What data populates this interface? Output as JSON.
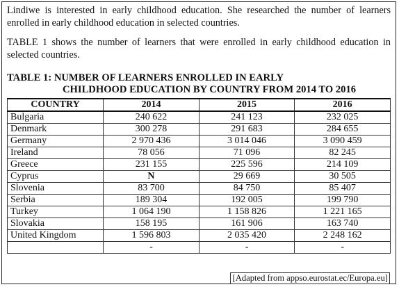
{
  "intro": {
    "paragraph1": "Lindiwe is interested in early childhood education. She researched the number of learners enrolled in early childhood education in selected countries.",
    "paragraph2": "TABLE 1 shows the number of learners that were enrolled in early childhood education in selected countries."
  },
  "table": {
    "caption_line1": "TABLE 1: NUMBER OF LEARNERS ENROLLED IN EARLY",
    "caption_line2": "CHILDHOOD EDUCATION BY COUNTRY FROM 2014 TO 2016",
    "headers": [
      "COUNTRY",
      "2014",
      "2015",
      "2016"
    ],
    "rows": [
      [
        "Bulgaria",
        "240 622",
        "241 123",
        "232 025"
      ],
      [
        "Denmark",
        "300 278",
        "291 683",
        "284 655"
      ],
      [
        "Germany",
        "2 970 436",
        "3 014 046",
        "3 090 459"
      ],
      [
        "Ireland",
        "78 056",
        "71 096",
        "82 245"
      ],
      [
        "Greece",
        "231 155",
        "225 596",
        "214 109"
      ],
      [
        "Cyprus",
        "N",
        "29 669",
        "30 505"
      ],
      [
        "Slovenia",
        "83 700",
        "84 750",
        "85 407"
      ],
      [
        "Serbia",
        "189 304",
        "192 005",
        "199 790"
      ],
      [
        "Turkey",
        "1 064 190",
        "1 158 826",
        "1 221 165"
      ],
      [
        "Slovakia",
        "158 195",
        "161 906",
        "163 740"
      ],
      [
        "United Kingdom",
        "1 596 803",
        "2 035 420",
        "2 248 162"
      ],
      [
        "",
        "-",
        "-",
        "-"
      ]
    ]
  },
  "source": "[Adapted from appso.eurostat.ec/Europa.eu]"
}
